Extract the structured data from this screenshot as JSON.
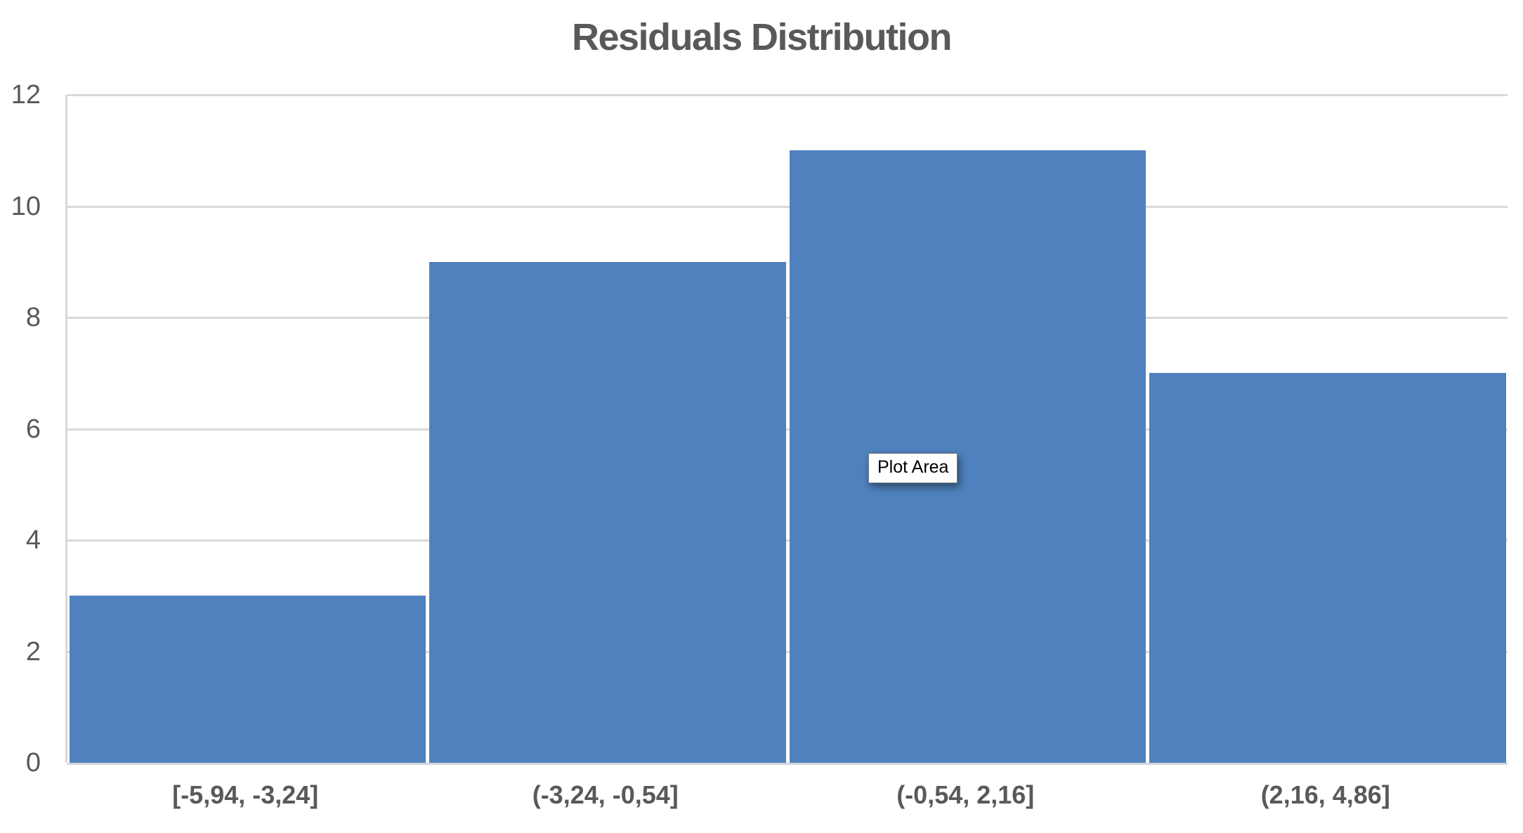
{
  "tooltip": {
    "label": "Plot Area"
  },
  "chart_data": {
    "type": "bar",
    "title": "Residuals Distribution",
    "subtitle": "",
    "categories": [
      "[-5,94, -3,24]",
      "(-3,24, -0,54]",
      "(-0,54, 2,16]",
      "(2,16, 4,86]"
    ],
    "values": [
      3,
      9,
      11,
      7
    ],
    "xlabel": "",
    "ylabel": "",
    "ylim": [
      0,
      12
    ],
    "yticks": [
      0,
      2,
      4,
      6,
      8,
      10,
      12
    ],
    "grid": "horizontal-only",
    "legend": "none",
    "colors": {
      "bar": "#4E81BD",
      "gridline": "#D9D9D9",
      "baseline": "#D3D6DC",
      "text": "#595959",
      "tooltip_text": "#000000",
      "tooltip_bg": "#ffffff",
      "tooltip_border": "#7a7a7a",
      "background": "#ffffff"
    }
  }
}
